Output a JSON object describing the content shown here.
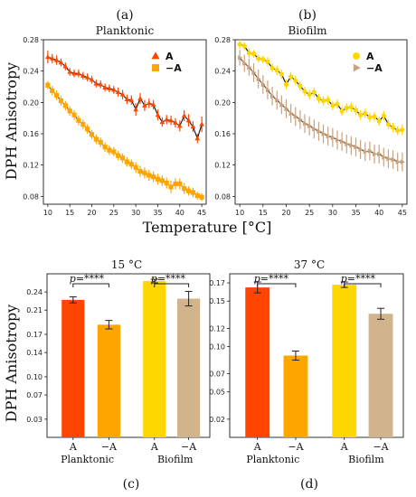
{
  "figure": {
    "panel_letters": [
      "(a)",
      "(b)",
      "(c)",
      "(d)"
    ],
    "top_ylabel": "DPH Anisotropy",
    "top_xlabel": "Temperature [°C]",
    "bottom_ylabel": "DPH Anisotropy"
  },
  "chart_data": [
    {
      "type": "line",
      "title": "Planktonic",
      "panel": "(a)",
      "xlim": [
        9,
        46
      ],
      "ylim": [
        0.07,
        0.28
      ],
      "xticks": [
        10,
        15,
        20,
        25,
        30,
        35,
        40,
        45
      ],
      "yticks": [
        0.08,
        0.12,
        0.16,
        0.2,
        0.24,
        0.28
      ],
      "legend_position": "top-right",
      "series": [
        {
          "name": "A",
          "color": "#ff4500",
          "marker": "triangle-up",
          "x": [
            10,
            11,
            12,
            13,
            14,
            15,
            16,
            17,
            18,
            19,
            20,
            21,
            22,
            23,
            24,
            25,
            26,
            27,
            28,
            29,
            30,
            31,
            32,
            33,
            34,
            35,
            36,
            37,
            38,
            39,
            40,
            41,
            42,
            43,
            44,
            45
          ],
          "y": [
            0.258,
            0.256,
            0.254,
            0.251,
            0.246,
            0.239,
            0.237,
            0.237,
            0.234,
            0.232,
            0.229,
            0.224,
            0.223,
            0.219,
            0.218,
            0.216,
            0.213,
            0.21,
            0.204,
            0.203,
            0.191,
            0.205,
            0.196,
            0.199,
            0.197,
            0.184,
            0.175,
            0.178,
            0.177,
            0.174,
            0.17,
            0.183,
            0.177,
            0.169,
            0.154,
            0.172
          ],
          "err": [
            0.008,
            0.006,
            0.006,
            0.005,
            0.005,
            0.005,
            0.005,
            0.005,
            0.005,
            0.005,
            0.005,
            0.005,
            0.005,
            0.005,
            0.005,
            0.005,
            0.006,
            0.006,
            0.006,
            0.006,
            0.008,
            0.007,
            0.007,
            0.006,
            0.006,
            0.007,
            0.006,
            0.006,
            0.006,
            0.006,
            0.007,
            0.007,
            0.008,
            0.007,
            0.006,
            0.01
          ]
        },
        {
          "name": "−A",
          "color": "#ffa500",
          "marker": "square",
          "x": [
            10,
            11,
            12,
            13,
            14,
            15,
            16,
            17,
            18,
            19,
            20,
            21,
            22,
            23,
            24,
            25,
            26,
            27,
            28,
            29,
            30,
            31,
            32,
            33,
            34,
            35,
            36,
            37,
            38,
            39,
            40,
            41,
            42,
            43,
            44,
            45
          ],
          "y": [
            0.222,
            0.215,
            0.209,
            0.202,
            0.196,
            0.189,
            0.184,
            0.177,
            0.172,
            0.166,
            0.159,
            0.153,
            0.149,
            0.143,
            0.139,
            0.137,
            0.132,
            0.129,
            0.124,
            0.121,
            0.117,
            0.112,
            0.11,
            0.107,
            0.105,
            0.102,
            0.1,
            0.097,
            0.092,
            0.096,
            0.096,
            0.09,
            0.087,
            0.085,
            0.081,
            0.079
          ],
          "err": [
            0.005,
            0.006,
            0.006,
            0.006,
            0.006,
            0.006,
            0.006,
            0.006,
            0.006,
            0.006,
            0.006,
            0.006,
            0.006,
            0.006,
            0.006,
            0.006,
            0.006,
            0.006,
            0.006,
            0.006,
            0.007,
            0.007,
            0.007,
            0.007,
            0.007,
            0.007,
            0.007,
            0.007,
            0.008,
            0.007,
            0.007,
            0.007,
            0.006,
            0.006,
            0.005,
            0.005
          ]
        }
      ]
    },
    {
      "type": "line",
      "title": "Biofilm",
      "panel": "(b)",
      "xlim": [
        9,
        46
      ],
      "ylim": [
        0.07,
        0.28
      ],
      "xticks": [
        10,
        15,
        20,
        25,
        30,
        35,
        40,
        45
      ],
      "yticks": [
        0.08,
        0.12,
        0.16,
        0.2,
        0.24,
        0.28
      ],
      "legend_position": "top-right",
      "series": [
        {
          "name": "A",
          "color": "#ffd700",
          "marker": "circle",
          "x": [
            10,
            11,
            12,
            13,
            14,
            15,
            16,
            17,
            18,
            19,
            20,
            21,
            22,
            23,
            24,
            25,
            26,
            27,
            28,
            29,
            30,
            31,
            32,
            33,
            34,
            35,
            36,
            37,
            38,
            39,
            40,
            41,
            42,
            43,
            44,
            45
          ],
          "y": [
            0.274,
            0.272,
            0.263,
            0.262,
            0.256,
            0.255,
            0.252,
            0.244,
            0.241,
            0.236,
            0.223,
            0.233,
            0.228,
            0.221,
            0.214,
            0.21,
            0.213,
            0.205,
            0.202,
            0.203,
            0.196,
            0.198,
            0.189,
            0.193,
            0.194,
            0.19,
            0.184,
            0.186,
            0.181,
            0.182,
            0.176,
            0.183,
            0.172,
            0.168,
            0.164,
            0.165
          ],
          "err": [
            0.006,
            0.005,
            0.006,
            0.005,
            0.005,
            0.005,
            0.006,
            0.006,
            0.006,
            0.006,
            0.006,
            0.006,
            0.006,
            0.006,
            0.006,
            0.006,
            0.006,
            0.006,
            0.006,
            0.006,
            0.006,
            0.006,
            0.006,
            0.006,
            0.006,
            0.006,
            0.006,
            0.006,
            0.006,
            0.006,
            0.006,
            0.006,
            0.006,
            0.006,
            0.006,
            0.007
          ]
        },
        {
          "name": "−A",
          "color": "#c9a27e",
          "marker": "triangle-right",
          "x": [
            10,
            11,
            12,
            13,
            14,
            15,
            16,
            17,
            18,
            19,
            20,
            21,
            22,
            23,
            24,
            25,
            26,
            27,
            28,
            29,
            30,
            31,
            32,
            33,
            34,
            35,
            36,
            37,
            38,
            39,
            40,
            41,
            42,
            43,
            44,
            45
          ],
          "y": [
            0.257,
            0.25,
            0.245,
            0.238,
            0.23,
            0.223,
            0.216,
            0.208,
            0.203,
            0.197,
            0.192,
            0.186,
            0.182,
            0.178,
            0.173,
            0.17,
            0.166,
            0.163,
            0.16,
            0.157,
            0.155,
            0.152,
            0.15,
            0.147,
            0.145,
            0.143,
            0.14,
            0.137,
            0.138,
            0.134,
            0.134,
            0.13,
            0.128,
            0.127,
            0.124,
            0.124
          ],
          "err": [
            0.01,
            0.011,
            0.011,
            0.012,
            0.012,
            0.012,
            0.012,
            0.012,
            0.012,
            0.012,
            0.012,
            0.012,
            0.012,
            0.012,
            0.012,
            0.012,
            0.012,
            0.012,
            0.012,
            0.012,
            0.012,
            0.012,
            0.012,
            0.012,
            0.012,
            0.012,
            0.012,
            0.012,
            0.012,
            0.012,
            0.012,
            0.012,
            0.012,
            0.012,
            0.012,
            0.012
          ]
        }
      ]
    },
    {
      "type": "bar",
      "title": "15 °C",
      "panel": "(c)",
      "ylim": [
        0,
        0.27
      ],
      "yticks": [
        0.03,
        0.07,
        0.1,
        0.14,
        0.17,
        0.21,
        0.24
      ],
      "categories": [
        "A",
        "−A",
        "A",
        "−A"
      ],
      "groups": [
        "Planktonic",
        "Biofilm"
      ],
      "colors": [
        "#ff4500",
        "#ffa500",
        "#ffd700",
        "#d2b48c"
      ],
      "values": [
        0.227,
        0.186,
        0.258,
        0.229
      ],
      "err": [
        0.005,
        0.007,
        0.003,
        0.012
      ],
      "significance": [
        "p=****",
        "p=****"
      ]
    },
    {
      "type": "bar",
      "title": "37 °C",
      "panel": "(d)",
      "ylim": [
        0,
        0.18
      ],
      "yticks": [
        0.02,
        0.05,
        0.07,
        0.1,
        0.12,
        0.15,
        0.17
      ],
      "categories": [
        "A",
        "−A",
        "A",
        "−A"
      ],
      "groups": [
        "Planktonic",
        "Biofilm"
      ],
      "colors": [
        "#ff4500",
        "#ffa500",
        "#ffd700",
        "#d2b48c"
      ],
      "values": [
        0.165,
        0.09,
        0.168,
        0.136
      ],
      "err": [
        0.006,
        0.005,
        0.003,
        0.006
      ],
      "significance": [
        "p=****",
        "p=****"
      ]
    }
  ]
}
